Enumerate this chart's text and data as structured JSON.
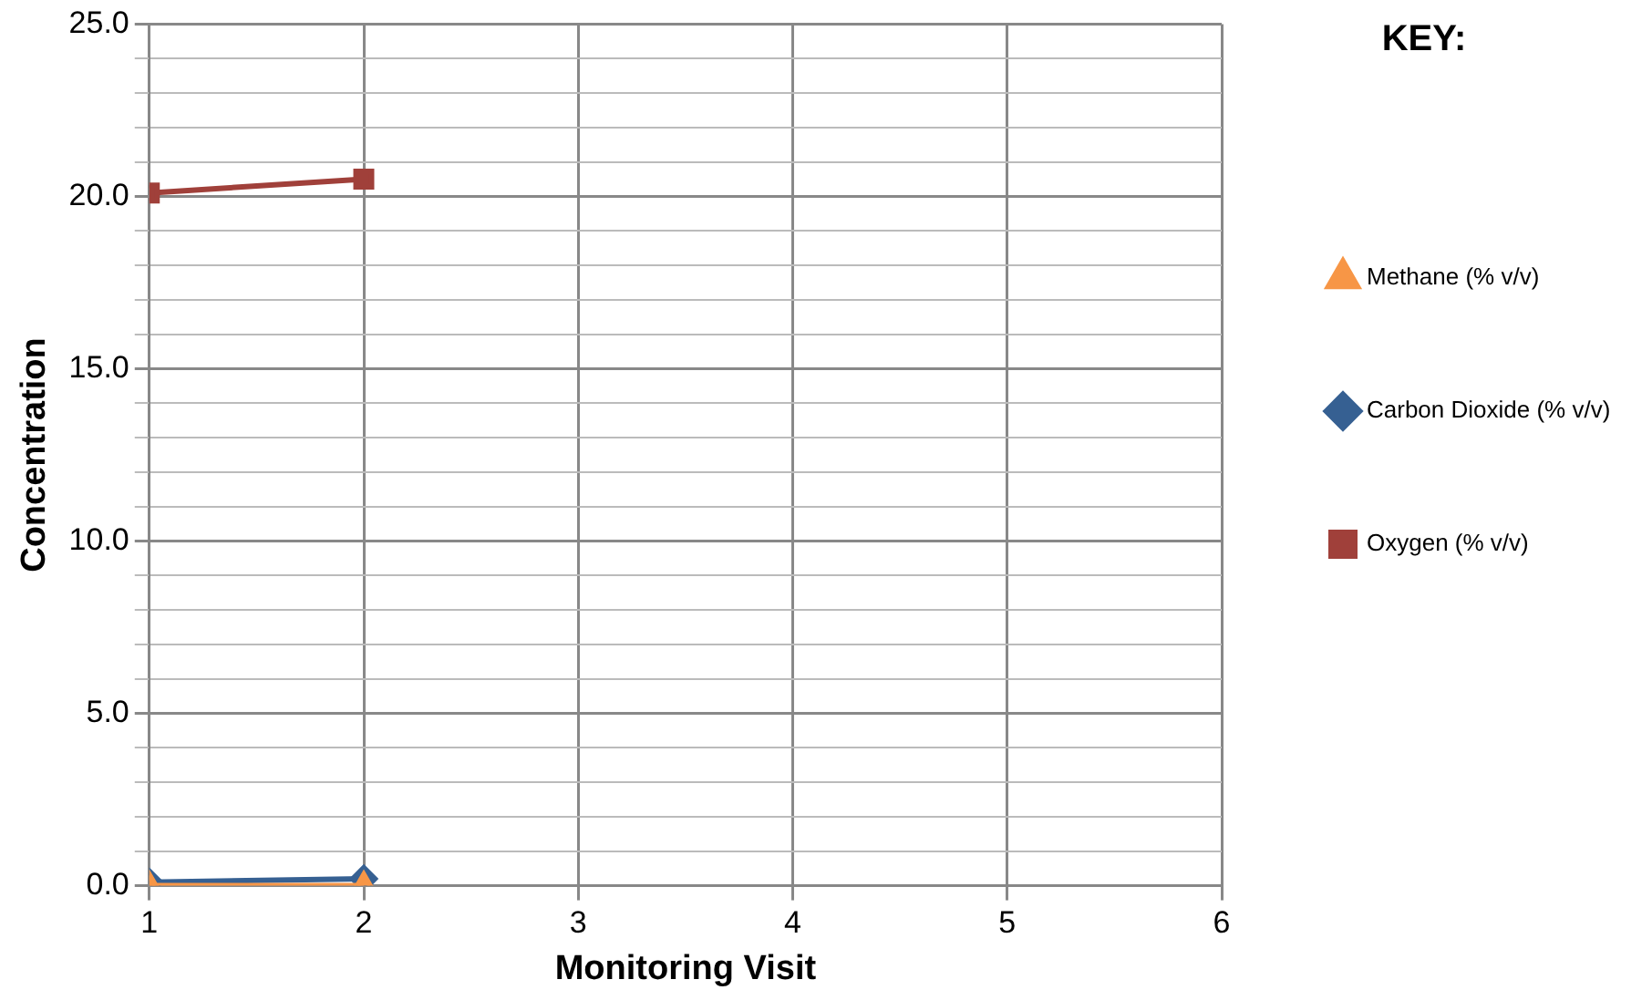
{
  "chart_data": {
    "type": "line",
    "xlabel": "Monitoring Visit",
    "ylabel": "Concentration",
    "legend_title": "KEY:",
    "legend": "right",
    "grid": true,
    "xlim": [
      1,
      6
    ],
    "xticks": [
      1,
      2,
      3,
      4,
      5,
      6
    ],
    "ylim": [
      0,
      25
    ],
    "yticks": [
      {
        "value": 0,
        "label": "0.0"
      },
      {
        "value": 1,
        "label": null
      },
      {
        "value": 2,
        "label": null
      },
      {
        "value": 3,
        "label": null
      },
      {
        "value": 4,
        "label": null
      },
      {
        "value": 5,
        "label": "5.0"
      },
      {
        "value": 6,
        "label": null
      },
      {
        "value": 7,
        "label": null
      },
      {
        "value": 8,
        "label": null
      },
      {
        "value": 9,
        "label": null
      },
      {
        "value": 10,
        "label": "10.0"
      },
      {
        "value": 11,
        "label": null
      },
      {
        "value": 12,
        "label": null
      },
      {
        "value": 13,
        "label": null
      },
      {
        "value": 14,
        "label": null
      },
      {
        "value": 15,
        "label": "15.0"
      },
      {
        "value": 16,
        "label": null
      },
      {
        "value": 17,
        "label": null
      },
      {
        "value": 18,
        "label": null
      },
      {
        "value": 19,
        "label": null
      },
      {
        "value": 20,
        "label": "20.0"
      },
      {
        "value": 21,
        "label": null
      },
      {
        "value": 22,
        "label": null
      },
      {
        "value": 23,
        "label": null
      },
      {
        "value": 24,
        "label": null
      },
      {
        "value": 25,
        "label": "25.0"
      }
    ],
    "x": [
      1,
      2
    ],
    "series": [
      {
        "name": "Methane (% v/v)",
        "color": "#f79646",
        "marker": "triangle",
        "values": [
          0,
          0
        ]
      },
      {
        "name": "Carbon Dioxide (% v/v)",
        "color": "#366092",
        "marker": "diamond",
        "values": [
          0.1,
          0.2
        ]
      },
      {
        "name": "Oxygen (% v/v)",
        "color": "#a0403a",
        "marker": "square",
        "values": [
          20.1,
          20.5
        ]
      }
    ]
  }
}
